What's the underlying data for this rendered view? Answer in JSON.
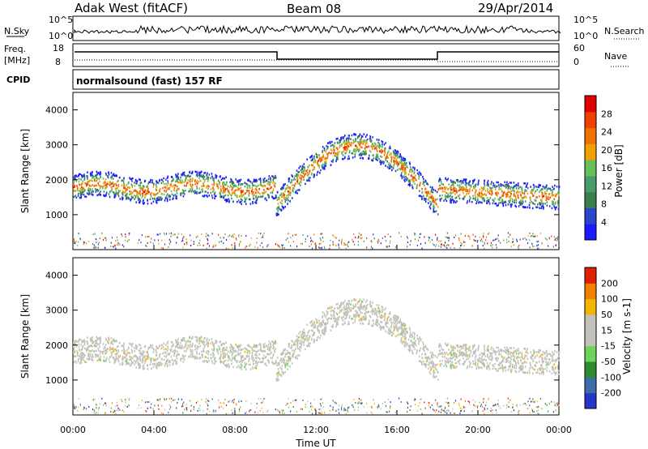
{
  "header": {
    "station": "Adak West (fitACF)",
    "beam": "Beam 08",
    "date": "29/Apr/2014"
  },
  "top_panels": {
    "nsky_label": "N.Sky",
    "nsearch_label": "N.Search",
    "nsky_ticks": [
      "10^5",
      "10^0"
    ],
    "nsky_right_ticks": [
      "10^5",
      "10^0"
    ],
    "freq_label": "Freq.",
    "freq_unit": "[MHz]",
    "freq_ticks": [
      "18",
      "8"
    ],
    "nave_label": "Nave",
    "nave_ticks": [
      "60",
      "0"
    ],
    "cpid_label": "CPID",
    "cpid_value": "normalsound (fast) 157 RF"
  },
  "colors": {
    "power_scale": [
      "#1b1bff",
      "#2945c9",
      "#3d7f4c",
      "#4a9c6e",
      "#67bf5c",
      "#f0a000",
      "#f07000",
      "#f04000",
      "#e00000"
    ],
    "velocity_scale": [
      "#2535c8",
      "#3d6ca8",
      "#2e8a2e",
      "#6dd35a",
      "#c2c2bb",
      "#c2c2bb",
      "#f5b400",
      "#f08000",
      "#e02000"
    ]
  },
  "chart_data": [
    {
      "type": "heatmap",
      "panel": "power",
      "ylabel": "Slant Range [km]",
      "yticks": [
        1000,
        2000,
        3000,
        4000
      ],
      "ylim": [
        0,
        4500
      ],
      "colorbar_label": "Power [dB]",
      "colorbar_ticks": [
        "4",
        "8",
        "12",
        "16",
        "20",
        "24",
        "28"
      ],
      "colorbar_range": [
        0,
        32
      ]
    },
    {
      "type": "heatmap",
      "panel": "velocity",
      "ylabel": "Slant Range [km]",
      "yticks": [
        1000,
        2000,
        3000,
        4000
      ],
      "ylim": [
        0,
        4500
      ],
      "colorbar_label": "Velocity [m s-1]",
      "colorbar_ticks": [
        "200",
        "100",
        "50",
        "15",
        "-15",
        "-50",
        "-100",
        "-200"
      ]
    }
  ],
  "xaxis": {
    "label": "Time UT",
    "ticks": [
      "00:00",
      "04:00",
      "08:00",
      "12:00",
      "16:00",
      "20:00",
      "00:00"
    ]
  }
}
